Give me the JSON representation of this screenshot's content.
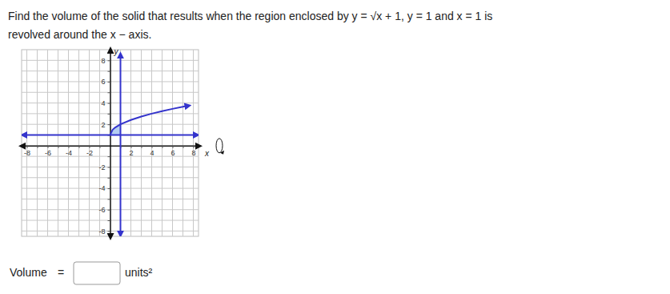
{
  "question": {
    "lines": [
      "Find the volume of the solid that results when the region enclosed by y = √x + 1, y = 1 and x = 1 is",
      "revolved around the x − axis."
    ]
  },
  "chart_data": {
    "type": "line",
    "x_label": "x",
    "y_label": "y",
    "xlim": [
      -8.5,
      8.5
    ],
    "ylim": [
      -8.5,
      9
    ],
    "xticks": [
      -8,
      {
        "value": -7,
        "label": null
      },
      -6,
      {
        "value": -5,
        "label": null
      },
      -4,
      {
        "value": -3,
        "label": null
      },
      -2,
      {
        "value": -1,
        "label": null
      },
      {
        "value": 1,
        "label": null
      },
      2,
      {
        "value": 3,
        "label": null
      },
      4,
      {
        "value": 5,
        "label": null
      },
      6,
      {
        "value": 7,
        "label": null
      },
      8
    ],
    "yticks": [
      -8,
      {
        "value": -7,
        "label": null
      },
      -6,
      {
        "value": -5,
        "label": null
      },
      -4,
      {
        "value": -3,
        "label": null
      },
      -2,
      {
        "value": -1,
        "label": null
      },
      {
        "value": 1,
        "label": null
      },
      2,
      {
        "value": 3,
        "label": null
      },
      4,
      {
        "value": 5,
        "label": null
      },
      6,
      {
        "value": 7,
        "label": null
      },
      8
    ],
    "grid": true,
    "series": [
      {
        "type": "area",
        "color": "#b4cdf2",
        "x": [
          0,
          0.25,
          0.5,
          0.75,
          1
        ],
        "values": [
          1,
          1.5,
          1.71,
          1.87,
          2
        ],
        "lower": [
          1,
          1,
          1,
          1,
          1
        ]
      },
      {
        "type": "line",
        "color": "#3434cc",
        "marker": "arrow-end",
        "x": [
          0,
          0.25,
          0.5,
          1,
          2,
          3,
          4,
          5,
          6,
          7,
          7.5
        ],
        "values": [
          1,
          1.5,
          1.71,
          2,
          2.41,
          2.73,
          3,
          3.24,
          3.45,
          3.65,
          3.74
        ]
      },
      {
        "type": "line",
        "color": "#3434cc",
        "marker": "arrow-both",
        "x": [
          -8.3,
          8.3
        ],
        "values": [
          1,
          1
        ]
      },
      {
        "type": "line",
        "color": "#3434cc",
        "marker": "arrow-both",
        "x": [
          1,
          1
        ],
        "values": [
          -8.3,
          8.5
        ]
      }
    ]
  },
  "answer": {
    "label": "Volume",
    "sign": "=",
    "units": "units²"
  }
}
